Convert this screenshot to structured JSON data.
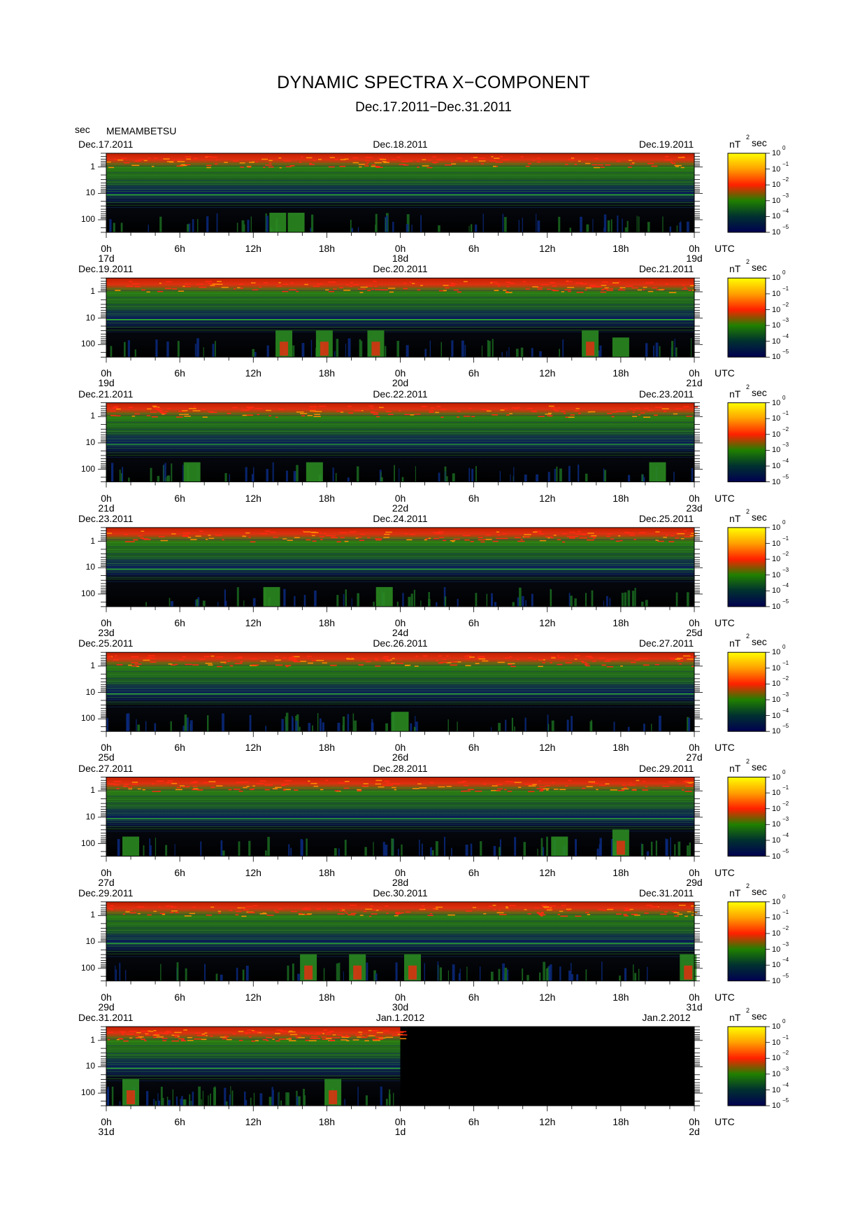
{
  "title": "DYNAMIC SPECTRA X−COMPONENT",
  "subtitle": "Dec.17.2011−Dec.31.2011",
  "y_unit": "sec",
  "station": "MEMAMBETSU",
  "colorbar_unit": {
    "nt": "nT",
    "sup": "2",
    "sec": "sec"
  },
  "colorbar_labels": [
    {
      "base": "10",
      "exp": "0"
    },
    {
      "base": "10",
      "exp": "−1"
    },
    {
      "base": "10",
      "exp": "−2"
    },
    {
      "base": "10",
      "exp": "−3"
    },
    {
      "base": "10",
      "exp": "−4"
    },
    {
      "base": "10",
      "exp": "−5"
    }
  ],
  "colorbar_colors": [
    "#ffff00",
    "#ffa000",
    "#ff2000",
    "#208000",
    "#003030",
    "#000050"
  ],
  "utc_label": "UTC",
  "y_tick_labels": [
    "1",
    "10",
    "100"
  ],
  "x_tick_labels": [
    "0h",
    "6h",
    "12h",
    "18h",
    "0h",
    "6h",
    "12h",
    "18h",
    "0h"
  ],
  "chart_data": {
    "type": "heatmap",
    "title": "DYNAMIC SPECTRA X−COMPONENT",
    "ylabel": "sec",
    "y_scale": "log",
    "ylim": [
      0.3,
      300
    ],
    "colorbar_range_nT2sec": [
      1e-05,
      1
    ],
    "panels": [
      {
        "date_left": "Dec.17.2011",
        "date_center": "Dec.18.2011",
        "date_right": "Dec.19.2011",
        "day_labels": [
          "17d",
          "18d",
          "19d"
        ],
        "data_end_hours": 48,
        "activity_bursts": [
          {
            "hour": 14,
            "level": "medium"
          },
          {
            "hour": 15.5,
            "level": "medium"
          }
        ]
      },
      {
        "date_left": "Dec.19.2011",
        "date_center": "Dec.20.2011",
        "date_right": "Dec.21.2011",
        "day_labels": [
          "19d",
          "20d",
          "21d"
        ],
        "data_end_hours": 48,
        "activity_bursts": [
          {
            "hour": 14.5,
            "level": "high"
          },
          {
            "hour": 17.8,
            "level": "high"
          },
          {
            "hour": 22,
            "level": "high"
          },
          {
            "hour": 39.5,
            "level": "high"
          },
          {
            "hour": 42,
            "level": "medium"
          }
        ]
      },
      {
        "date_left": "Dec.21.2011",
        "date_center": "Dec.22.2011",
        "date_right": "Dec.23.2011",
        "day_labels": [
          "21d",
          "22d",
          "23d"
        ],
        "data_end_hours": 48,
        "activity_bursts": [
          {
            "hour": 7,
            "level": "medium"
          },
          {
            "hour": 17,
            "level": "medium"
          },
          {
            "hour": 45,
            "level": "medium"
          }
        ]
      },
      {
        "date_left": "Dec.23.2011",
        "date_center": "Dec.24.2011",
        "date_right": "Dec.25.2011",
        "day_labels": [
          "23d",
          "24d",
          "25d"
        ],
        "data_end_hours": 48,
        "activity_bursts": [
          {
            "hour": 13.5,
            "level": "medium"
          },
          {
            "hour": 22.7,
            "level": "medium"
          }
        ]
      },
      {
        "date_left": "Dec.25.2011",
        "date_center": "Dec.26.2011",
        "date_right": "Dec.27.2011",
        "day_labels": [
          "25d",
          "26d",
          "27d"
        ],
        "data_end_hours": 48,
        "activity_bursts": [
          {
            "hour": 24,
            "level": "medium"
          }
        ]
      },
      {
        "date_left": "Dec.27.2011",
        "date_center": "Dec.28.2011",
        "date_right": "Dec.29.2011",
        "day_labels": [
          "27d",
          "28d",
          "29d"
        ],
        "data_end_hours": 48,
        "activity_bursts": [
          {
            "hour": 2,
            "level": "medium"
          },
          {
            "hour": 37,
            "level": "medium"
          },
          {
            "hour": 42,
            "level": "high"
          }
        ]
      },
      {
        "date_left": "Dec.29.2011",
        "date_center": "Dec.30.2011",
        "date_right": "Dec.31.2011",
        "day_labels": [
          "29d",
          "30d",
          "31d"
        ],
        "data_end_hours": 48,
        "activity_bursts": [
          {
            "hour": 16.5,
            "level": "high"
          },
          {
            "hour": 20.5,
            "level": "high"
          },
          {
            "hour": 25,
            "level": "high"
          },
          {
            "hour": 47.5,
            "level": "high"
          }
        ]
      },
      {
        "date_left": "Dec.31.2011",
        "date_center": "Jan.1.2012",
        "date_right": "Jan.2.2012",
        "day_labels": [
          "31d",
          "1d",
          "2d"
        ],
        "data_end_hours": 24,
        "activity_bursts": [
          {
            "hour": 2,
            "level": "high"
          },
          {
            "hour": 18.5,
            "level": "high"
          }
        ]
      }
    ]
  }
}
